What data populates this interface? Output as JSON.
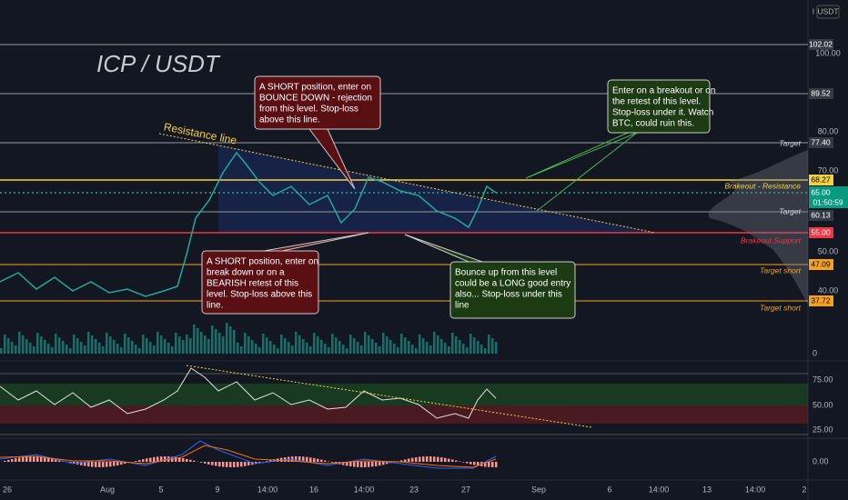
{
  "header": {
    "title": "ICP / USDT",
    "currency": "USDT",
    "log_toggle": "l"
  },
  "price_axis": {
    "ticks": [
      "100.00",
      "80.00",
      "70.00",
      "50.00",
      "40.00"
    ],
    "levels": [
      "102.02",
      "89.52",
      "77.40",
      "68.27",
      "65.00",
      "01:50:59",
      "60.13",
      "55.00",
      "47.09",
      "37.72"
    ]
  },
  "level_names": [
    "Target",
    "Brakeout - Resistance",
    "Target",
    "Brakeout   Support",
    "Target short",
    "Target short"
  ],
  "trendline_label": "Resistance line",
  "annotations": [
    {
      "lines": [
        "A SHORT position, enter on",
        "BOUNCE DOWN - rejection",
        "from this level. Stop-loss",
        "above this line."
      ]
    },
    {
      "lines": [
        "Enter on a breakout or on",
        "the retest of this level.",
        "Stop-loss under it. Watch",
        "BTC, could ruin this."
      ]
    },
    {
      "lines": [
        "A SHORT position, enter on",
        "break down or on a",
        "BEARISH retest of this",
        "level. Stop-loss above this",
        "line."
      ]
    },
    {
      "lines": [
        "Bounce up from this level",
        "could be a LONG good entry",
        "also... Stop-loss under this",
        "line"
      ]
    }
  ],
  "volume_axis": [
    "0"
  ],
  "rsi_axis": [
    "75.00",
    "50.00",
    "25.00"
  ],
  "macd_axis": [
    "0.00"
  ],
  "time_axis": [
    "26",
    "Aug",
    "5",
    "9",
    "14:00",
    "16",
    "14:00",
    "23",
    "27",
    "Sep",
    "6",
    "14:00",
    "13",
    "14:00",
    "2"
  ]
}
